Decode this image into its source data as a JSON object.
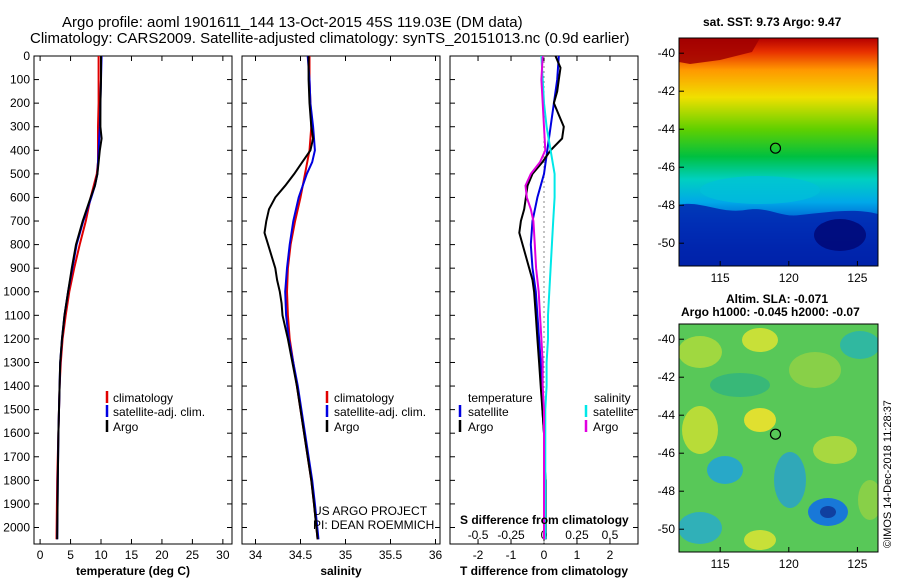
{
  "header": {
    "title_line1": "Argo profile: aoml 1901611_144 13-Oct-2015 45S 119.03E (DM data)",
    "title_line2": "Climatology: CARS2009. Satellite-adjusted climatology: synTS_20151013.nc (0.9d earlier)"
  },
  "colors": {
    "climatology": "#e00000",
    "satellite": "#0000e0",
    "argo": "#000000",
    "sat_salinity": "#00e8e8",
    "argo_salinity": "#e000e0"
  },
  "chart_data": [
    {
      "type": "line",
      "id": "temperature",
      "xlabel": "temperature (deg C)",
      "xticks": [
        0,
        5,
        10,
        15,
        20,
        25,
        30
      ],
      "xlim": [
        -1,
        31.5
      ],
      "yticks": [
        0,
        100,
        200,
        300,
        400,
        500,
        600,
        700,
        800,
        900,
        1000,
        1100,
        1200,
        1300,
        1400,
        1500,
        1600,
        1700,
        1800,
        1900,
        2000
      ],
      "ylim": [
        0,
        2070
      ],
      "legend": [
        "climatology",
        "satellite-adj. clim.",
        "Argo"
      ],
      "series": [
        {
          "name": "climatology",
          "depth": [
            0,
            100,
            200,
            300,
            400,
            450,
            500,
            550,
            600,
            700,
            800,
            900,
            1000,
            1100,
            1200,
            1300,
            1400,
            1500,
            1600,
            1800,
            2050
          ],
          "values": [
            9.6,
            9.6,
            9.6,
            9.5,
            9.5,
            9.5,
            9.3,
            8.8,
            8.3,
            7.5,
            6.5,
            5.6,
            4.8,
            4.2,
            3.7,
            3.4,
            3.2,
            3.1,
            3.0,
            2.8,
            2.7
          ]
        },
        {
          "name": "satellite-adj. clim.",
          "depth": [
            0,
            100,
            200,
            300,
            400,
            450,
            500,
            550,
            600,
            700,
            800,
            900,
            1000,
            1100,
            1200,
            1300,
            1400,
            1500,
            1600,
            1800,
            2050
          ],
          "values": [
            10.1,
            10.0,
            9.9,
            9.8,
            9.6,
            9.5,
            9.4,
            9.0,
            8.4,
            7.1,
            6.0,
            5.3,
            4.6,
            4.0,
            3.6,
            3.3,
            3.2,
            3.1,
            3.0,
            2.9,
            2.8
          ]
        },
        {
          "name": "Argo",
          "depth": [
            0,
            100,
            200,
            300,
            350,
            400,
            450,
            500,
            550,
            600,
            700,
            800,
            900,
            1000,
            1100,
            1200,
            1300,
            1400,
            1500,
            1600,
            1800,
            2050
          ],
          "values": [
            10.0,
            10.0,
            9.9,
            9.9,
            10.1,
            9.8,
            9.6,
            9.4,
            9.0,
            8.3,
            7.0,
            5.9,
            5.2,
            4.6,
            4.0,
            3.6,
            3.3,
            3.2,
            3.1,
            3.0,
            2.9,
            2.8
          ]
        }
      ]
    },
    {
      "type": "line",
      "id": "salinity",
      "xlabel": "salinity",
      "xticks": [
        34,
        34.5,
        35,
        35.5,
        36
      ],
      "xlim": [
        33.85,
        36.05
      ],
      "yticks": [
        0,
        100,
        200,
        300,
        400,
        500,
        600,
        700,
        800,
        900,
        1000,
        1100,
        1200,
        1300,
        1400,
        1500,
        1600,
        1700,
        1800,
        1900,
        2000
      ],
      "ylim": [
        0,
        2070
      ],
      "legend": [
        "climatology",
        "satellite-adj. clim.",
        "Argo"
      ],
      "annotations": [
        "US ARGO PROJECT",
        "PI: DEAN ROEMMICH"
      ],
      "series": [
        {
          "name": "climatology",
          "depth": [
            0,
            100,
            200,
            300,
            400,
            500,
            600,
            700,
            800,
            900,
            1000,
            1100,
            1200,
            1300,
            1400,
            1500,
            1600,
            1700,
            1800,
            1900,
            2050
          ],
          "values": [
            34.6,
            34.6,
            34.61,
            34.62,
            34.6,
            34.55,
            34.5,
            34.44,
            34.39,
            34.36,
            34.35,
            34.36,
            34.38,
            34.42,
            34.46,
            34.5,
            34.54,
            34.58,
            34.62,
            34.65,
            34.69
          ]
        },
        {
          "name": "satellite-adj. clim.",
          "depth": [
            0,
            100,
            200,
            300,
            400,
            450,
            500,
            600,
            700,
            800,
            900,
            1000,
            1100,
            1200,
            1300,
            1400,
            1500,
            1600,
            1700,
            1800,
            1900,
            2050
          ],
          "values": [
            34.58,
            34.6,
            34.61,
            34.64,
            34.66,
            34.63,
            34.57,
            34.48,
            34.42,
            34.38,
            34.35,
            34.33,
            34.34,
            34.37,
            34.42,
            34.47,
            34.51,
            34.55,
            34.59,
            34.63,
            34.66,
            34.7
          ]
        },
        {
          "name": "Argo",
          "depth": [
            0,
            100,
            200,
            300,
            350,
            400,
            450,
            500,
            550,
            600,
            650,
            700,
            750,
            800,
            850,
            900,
            950,
            1000,
            1050,
            1100,
            1150,
            1200,
            1300,
            1400,
            1500,
            1600,
            1700,
            1800,
            1900,
            2050
          ],
          "values": [
            34.59,
            34.59,
            34.6,
            34.62,
            34.64,
            34.61,
            34.52,
            34.43,
            34.33,
            34.22,
            34.15,
            34.12,
            34.1,
            34.14,
            34.18,
            34.22,
            34.24,
            34.27,
            34.29,
            34.3,
            34.33,
            34.36,
            34.41,
            34.46,
            34.5,
            34.54,
            34.58,
            34.62,
            34.65,
            34.69
          ]
        }
      ]
    },
    {
      "type": "line",
      "id": "difference",
      "xlabel": "T difference from climatology",
      "xlabel_top": "S difference from climatology",
      "xticks": [
        -2,
        -1,
        0,
        1,
        2
      ],
      "xticks_top": [
        "-0.5",
        "-0.25",
        "0",
        "0.25",
        "0.5"
      ],
      "xlim": [
        -2.85,
        2.85
      ],
      "yticks": [
        0,
        100,
        200,
        300,
        400,
        500,
        600,
        700,
        800,
        900,
        1000,
        1100,
        1200,
        1300,
        1400,
        1500,
        1600,
        1700,
        1800,
        1900,
        2000
      ],
      "ylim": [
        0,
        2070
      ],
      "legend_temperature_title": "temperature",
      "legend_salinity_title": "salinity",
      "legend_temperature": [
        "satellite",
        "Argo"
      ],
      "legend_salinity": [
        "satellite",
        "Argo"
      ],
      "series": [
        {
          "name": "temperature satellite",
          "depth": [
            0,
            100,
            200,
            300,
            400,
            500,
            600,
            700,
            800,
            900,
            1000,
            1100,
            1200,
            1300,
            1400,
            1500,
            1600,
            1700,
            1800,
            1900,
            2050
          ],
          "values": [
            0.45,
            0.4,
            0.3,
            0.2,
            0.1,
            0.0,
            -0.2,
            -0.35,
            -0.4,
            -0.35,
            -0.25,
            -0.2,
            -0.15,
            -0.1,
            -0.05,
            -0.05,
            0.0,
            0.0,
            0.05,
            0.05,
            0.05
          ]
        },
        {
          "name": "temperature Argo",
          "depth": [
            0,
            50,
            100,
            150,
            200,
            250,
            300,
            350,
            400,
            450,
            500,
            550,
            600,
            650,
            700,
            750,
            800,
            850,
            900,
            950,
            1000,
            1100,
            1200,
            1300,
            1400,
            1500,
            1600,
            1700,
            1800,
            1900,
            2050
          ],
          "values": [
            0.35,
            0.5,
            0.45,
            0.4,
            0.3,
            0.45,
            0.6,
            0.55,
            0.2,
            -0.05,
            -0.35,
            -0.5,
            -0.55,
            -0.6,
            -0.7,
            -0.75,
            -0.65,
            -0.55,
            -0.45,
            -0.35,
            -0.3,
            -0.25,
            -0.2,
            -0.15,
            -0.1,
            -0.05,
            0.0,
            0.0,
            0.05,
            0.05,
            0.05
          ]
        },
        {
          "name": "salinity satellite",
          "depth": [
            0,
            100,
            200,
            300,
            400,
            500,
            600,
            700,
            800,
            900,
            1000,
            1100,
            1200,
            1300,
            1400,
            1500,
            1600,
            1700,
            1800,
            1900,
            2050
          ],
          "values": [
            -0.02,
            -0.01,
            0.0,
            0.02,
            0.05,
            0.08,
            0.08,
            0.07,
            0.06,
            0.05,
            0.04,
            0.03,
            0.03,
            0.02,
            0.02,
            0.01,
            0.01,
            0.01,
            0.01,
            0.01,
            0.01
          ]
        },
        {
          "name": "salinity Argo",
          "depth": [
            0,
            100,
            200,
            300,
            400,
            450,
            500,
            550,
            600,
            650,
            700,
            800,
            900,
            1000,
            1100,
            1200,
            1300,
            1400,
            1500,
            1600,
            1700,
            1800,
            1900,
            2050
          ],
          "values": [
            -0.01,
            -0.02,
            -0.01,
            0.0,
            0.01,
            -0.03,
            -0.1,
            -0.14,
            -0.13,
            -0.1,
            -0.08,
            -0.07,
            -0.06,
            -0.04,
            -0.03,
            -0.02,
            -0.01,
            -0.01,
            0.0,
            0.0,
            0.0,
            0.0,
            0.0,
            0.0
          ]
        }
      ]
    },
    {
      "type": "heatmap",
      "id": "sst_map",
      "title": "sat. SST: 9.73 Argo: 9.47",
      "xticks": [
        115,
        120,
        125
      ],
      "yticks": [
        -40,
        -42,
        -44,
        -46,
        -48,
        -50
      ],
      "xlim": [
        112,
        126.5
      ],
      "ylim": [
        -51.2,
        -39.2
      ],
      "marker": {
        "lon": 119.03,
        "lat": -45
      }
    },
    {
      "type": "heatmap",
      "id": "sla_map",
      "title_line1": "Altim. SLA: -0.071",
      "title_line2": "Argo h1000: -0.045 h2000: -0.07",
      "xticks": [
        115,
        120,
        125
      ],
      "yticks": [
        -40,
        -42,
        -44,
        -46,
        -48,
        -50
      ],
      "xlim": [
        112,
        126.5
      ],
      "ylim": [
        -51.2,
        -39.2
      ],
      "marker": {
        "lon": 119.03,
        "lat": -45
      }
    }
  ],
  "footer": {
    "credit": "©IMOS 14-Dec-2018 11:28:37"
  }
}
